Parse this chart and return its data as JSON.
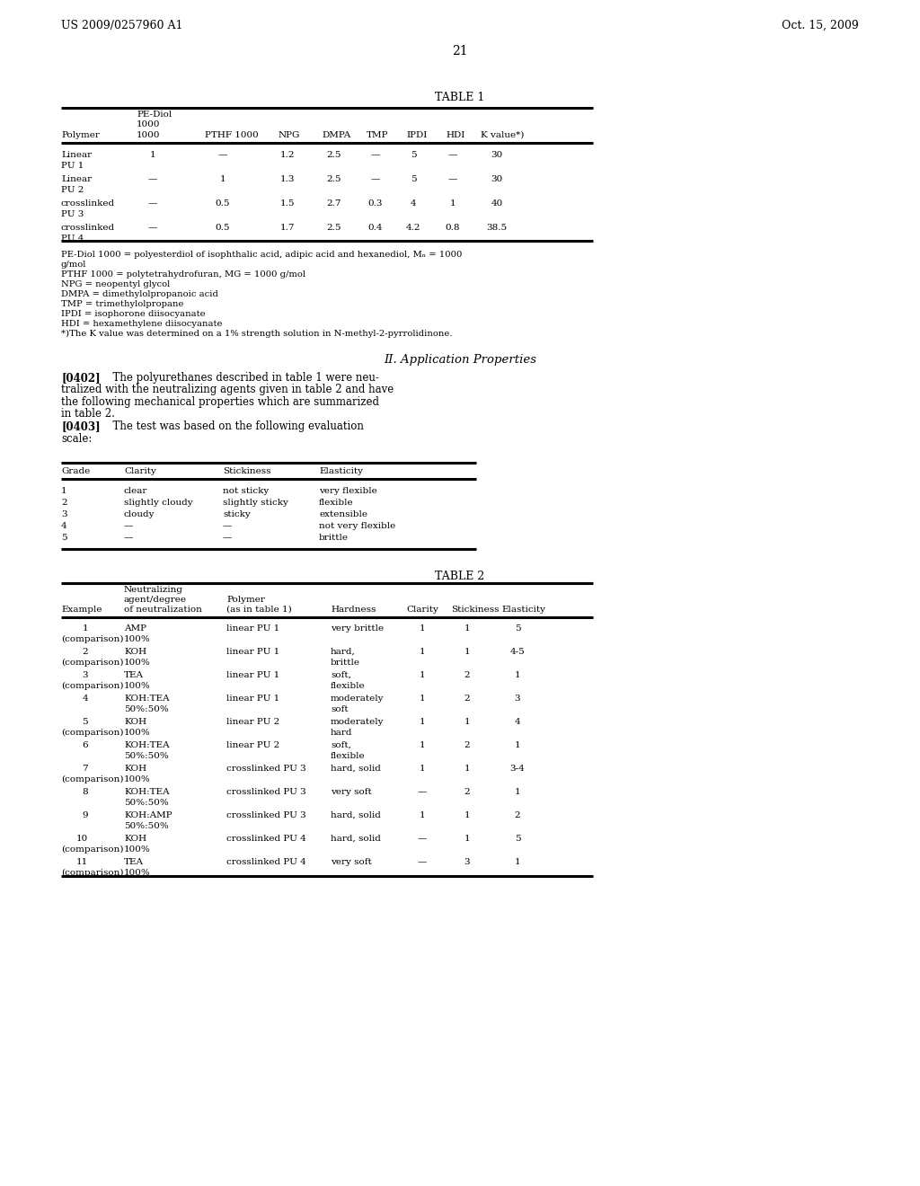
{
  "header_left": "US 2009/0257960 A1",
  "header_right": "Oct. 15, 2009",
  "page_number": "21",
  "table1_title": "TABLE 1",
  "table1_footnotes": [
    "PE-Diol 1000 = polyesterdiol of isophthalic acid, adipic acid and hexanediol, Mₙ = 1000",
    "g/mol",
    "PTHF 1000 = polytetrahydrofuran, MG = 1000 g/mol",
    "NPG = neopentyl glycol",
    "DMPA = dimethylolpropanoic acid",
    "TMP = trimethylolpropane",
    "IPDI = isophorone diisocyanate",
    "HDI = hexamethylene diisocyanate",
    "*)The K value was determined on a 1% strength solution in N-methyl-2-pyrrolidinone."
  ],
  "section_heading": "II. Application Properties",
  "para_0402_lines": [
    "[0402]   The polyurethanes described in table 1 were neu-",
    "tralized with the neutralizing agents given in table 2 and have",
    "the following mechanical properties which are summarized",
    "in table 2."
  ],
  "para_0403_lines": [
    "[0403]   The test was based on the following evaluation",
    "scale:"
  ],
  "grade_table_headers": [
    "Grade",
    "Clarity",
    "Stickiness",
    "Elasticity"
  ],
  "grade_table_rows": [
    [
      "1",
      "clear",
      "not sticky",
      "very flexible"
    ],
    [
      "2",
      "slightly cloudy",
      "slightly sticky",
      "flexible"
    ],
    [
      "3",
      "cloudy",
      "sticky",
      "extensible"
    ],
    [
      "4",
      "—",
      "—",
      "not very flexible"
    ],
    [
      "5",
      "—",
      "—",
      "brittle"
    ]
  ],
  "table2_title": "TABLE 2",
  "table1_rows": [
    [
      "Linear",
      "PU 1",
      "1",
      "—",
      "1.2",
      "2.5",
      "—",
      "5",
      "—",
      "30"
    ],
    [
      "Linear",
      "PU 2",
      "—",
      "1",
      "1.3",
      "2.5",
      "—",
      "5",
      "—",
      "30"
    ],
    [
      "crosslinked",
      "PU 3",
      "—",
      "0.5",
      "1.5",
      "2.7",
      "0.3",
      "4",
      "1",
      "40"
    ],
    [
      "crosslinked",
      "PU 4",
      "—",
      "0.5",
      "1.7",
      "2.5",
      "0.4",
      "4.2",
      "0.8",
      "38.5"
    ]
  ],
  "table2_rows": [
    [
      "1",
      "(comparison)",
      "AMP",
      "100%",
      "linear PU 1",
      "very brittle",
      "",
      "1",
      "1",
      "5"
    ],
    [
      "2",
      "(comparison)",
      "KOH",
      "100%",
      "linear PU 1",
      "hard,",
      "brittle",
      "1",
      "1",
      "4-5"
    ],
    [
      "3",
      "(comparison)",
      "TEA",
      "100%",
      "linear PU 1",
      "soft,",
      "flexible",
      "1",
      "2",
      "1"
    ],
    [
      "4",
      "",
      "KOH:TEA",
      "50%:50%",
      "linear PU 1",
      "moderately",
      "soft",
      "1",
      "2",
      "3"
    ],
    [
      "5",
      "(comparison)",
      "KOH",
      "100%",
      "linear PU 2",
      "moderately",
      "hard",
      "1",
      "1",
      "4"
    ],
    [
      "6",
      "",
      "KOH:TEA",
      "50%:50%",
      "linear PU 2",
      "soft,",
      "flexible",
      "1",
      "2",
      "1"
    ],
    [
      "7",
      "(comparison)",
      "KOH",
      "100%",
      "crosslinked PU 3",
      "hard, solid",
      "",
      "1",
      "1",
      "3-4"
    ],
    [
      "8",
      "",
      "KOH:TEA",
      "50%:50%",
      "crosslinked PU 3",
      "very soft",
      "",
      "—",
      "2",
      "1"
    ],
    [
      "9",
      "",
      "KOH:AMP",
      "50%:50%",
      "crosslinked PU 3",
      "hard, solid",
      "",
      "1",
      "1",
      "2"
    ],
    [
      "10",
      "(comparison)",
      "KOH",
      "100%",
      "crosslinked PU 4",
      "hard, solid",
      "",
      "—",
      "1",
      "5"
    ],
    [
      "11",
      "(comparison)",
      "TEA",
      "100%",
      "crosslinked PU 4",
      "very soft",
      "",
      "—",
      "3",
      "1"
    ]
  ],
  "bg_color": "#ffffff",
  "text_color": "#000000"
}
